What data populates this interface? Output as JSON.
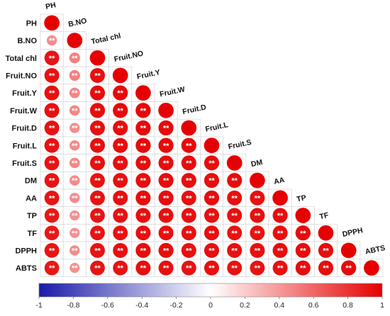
{
  "chart_data": {
    "type": "heatmap",
    "style": "lower-triangle correlation circles",
    "variables": [
      "PH",
      "B.NO",
      "Total chl",
      "Fruit.NO",
      "Fruit.Y",
      "Fruit.W",
      "Fruit.D",
      "Fruit.L",
      "Fruit.S",
      "DM",
      "AA",
      "TP",
      "TF",
      "DPPH",
      "ABTS"
    ],
    "col_labels": [
      "PH",
      "B.NO",
      "Total chl",
      "Fruit.NO",
      "Fruit.Y",
      "Fruit.W",
      "Fruit.D",
      "Fruit.L",
      "Fruit.S",
      "DM",
      "AA",
      "TP",
      "TF",
      "DPPH",
      "ABTS"
    ],
    "matrix": [
      [
        1
      ],
      [
        0.45,
        1
      ],
      [
        0.92,
        0.5,
        1
      ],
      [
        0.93,
        0.5,
        0.94,
        1
      ],
      [
        0.94,
        0.48,
        0.95,
        0.96,
        1
      ],
      [
        0.94,
        0.47,
        0.95,
        0.96,
        0.97,
        1
      ],
      [
        0.93,
        0.45,
        0.94,
        0.95,
        0.96,
        0.96,
        1
      ],
      [
        0.93,
        0.46,
        0.94,
        0.95,
        0.96,
        0.96,
        0.96,
        1
      ],
      [
        0.93,
        0.47,
        0.94,
        0.95,
        0.95,
        0.95,
        0.95,
        0.95,
        1
      ],
      [
        0.92,
        0.46,
        0.93,
        0.94,
        0.95,
        0.95,
        0.95,
        0.95,
        0.95,
        1
      ],
      [
        0.92,
        0.45,
        0.93,
        0.94,
        0.95,
        0.95,
        0.94,
        0.95,
        0.94,
        0.94,
        1
      ],
      [
        0.91,
        0.44,
        0.92,
        0.93,
        0.94,
        0.94,
        0.94,
        0.94,
        0.94,
        0.94,
        0.95,
        1
      ],
      [
        0.91,
        0.44,
        0.92,
        0.93,
        0.94,
        0.94,
        0.94,
        0.94,
        0.93,
        0.93,
        0.94,
        0.96,
        1
      ],
      [
        0.92,
        0.45,
        0.93,
        0.94,
        0.95,
        0.95,
        0.94,
        0.94,
        0.94,
        0.94,
        0.95,
        0.95,
        0.95,
        1
      ],
      [
        0.91,
        0.44,
        0.92,
        0.93,
        0.94,
        0.94,
        0.93,
        0.94,
        0.93,
        0.93,
        0.94,
        0.95,
        0.95,
        0.96,
        1
      ]
    ],
    "significance_marker": "**",
    "colorbar": {
      "range": [
        -1,
        1
      ],
      "ticks": [
        "-1",
        "-0.8",
        "-0.6",
        "-0.4",
        "-0.2",
        "0",
        "0.2",
        "0.4",
        "0.6",
        "0.8",
        "1"
      ],
      "colors": {
        "negative": "#1a1aa8",
        "zero": "#ffffff",
        "positive": "#e60000"
      }
    },
    "grid": true
  }
}
